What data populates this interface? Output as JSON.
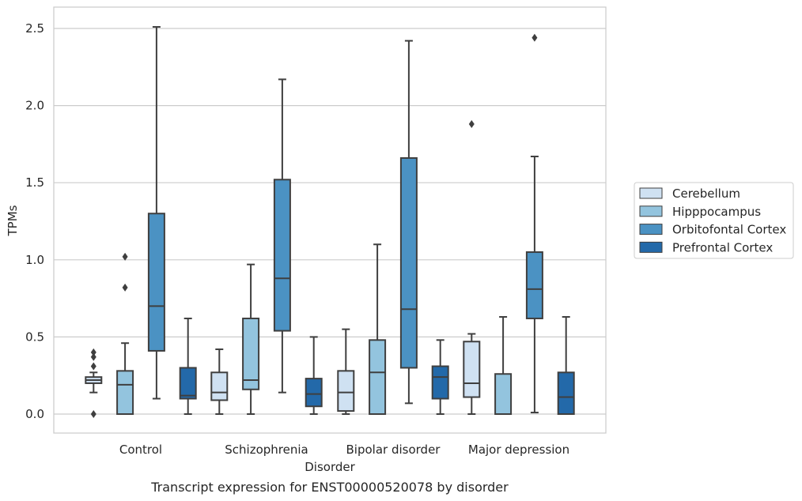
{
  "chart_data": {
    "type": "boxplot",
    "xlabel": "Disorder",
    "ylabel": "TPMs",
    "caption": "Transcript expression for ENST00000520078 by disorder",
    "ylim": [
      -0.12,
      2.65
    ],
    "yticks": [
      0.0,
      0.5,
      1.0,
      1.5,
      2.0,
      2.5
    ],
    "ytick_labels": [
      "0.0",
      "0.5",
      "1.0",
      "1.5",
      "2.0",
      "2.5"
    ],
    "grid": "horizontal",
    "legend_position": "right",
    "categories": [
      "Control",
      "Schizophrenia",
      "Bipolar disorder",
      "Major depression"
    ],
    "series": [
      {
        "name": "Cerebellum",
        "color": "#cfe1f2",
        "boxes": [
          {
            "whislo": 0.14,
            "q1": 0.2,
            "med": 0.22,
            "q3": 0.24,
            "whishi": 0.27,
            "fliers": [
              0.4,
              0.37,
              0.31,
              0.0
            ]
          },
          {
            "whislo": 0.0,
            "q1": 0.09,
            "med": 0.14,
            "q3": 0.27,
            "whishi": 0.42,
            "fliers": []
          },
          {
            "whislo": 0.0,
            "q1": 0.02,
            "med": 0.14,
            "q3": 0.28,
            "whishi": 0.55,
            "fliers": []
          },
          {
            "whislo": 0.0,
            "q1": 0.11,
            "med": 0.2,
            "q3": 0.47,
            "whishi": 0.52,
            "fliers": [
              1.88
            ]
          }
        ]
      },
      {
        "name": "Hipppocampus",
        "color": "#93c4de",
        "boxes": [
          {
            "whislo": 0.0,
            "q1": 0.0,
            "med": 0.19,
            "q3": 0.28,
            "whishi": 0.46,
            "fliers": [
              1.02,
              0.82
            ]
          },
          {
            "whislo": 0.0,
            "q1": 0.16,
            "med": 0.22,
            "q3": 0.62,
            "whishi": 0.97,
            "fliers": []
          },
          {
            "whislo": 0.0,
            "q1": 0.0,
            "med": 0.27,
            "q3": 0.48,
            "whishi": 1.1,
            "fliers": []
          },
          {
            "whislo": 0.0,
            "q1": 0.0,
            "med": 0.0,
            "q3": 0.26,
            "whishi": 0.63,
            "fliers": []
          }
        ]
      },
      {
        "name": "Orbitofontal Cortex",
        "color": "#4b92c3",
        "boxes": [
          {
            "whislo": 0.1,
            "q1": 0.41,
            "med": 0.7,
            "q3": 1.3,
            "whishi": 2.51,
            "fliers": []
          },
          {
            "whislo": 0.14,
            "q1": 0.54,
            "med": 0.88,
            "q3": 1.52,
            "whishi": 2.17,
            "fliers": []
          },
          {
            "whislo": 0.07,
            "q1": 0.3,
            "med": 0.68,
            "q3": 1.66,
            "whishi": 2.42,
            "fliers": []
          },
          {
            "whislo": 0.01,
            "q1": 0.62,
            "med": 0.81,
            "q3": 1.05,
            "whishi": 1.67,
            "fliers": [
              2.44
            ]
          }
        ]
      },
      {
        "name": "Prefrontal Cortex",
        "color": "#2369a9",
        "boxes": [
          {
            "whislo": 0.0,
            "q1": 0.1,
            "med": 0.12,
            "q3": 0.3,
            "whishi": 0.62,
            "fliers": []
          },
          {
            "whislo": 0.0,
            "q1": 0.05,
            "med": 0.13,
            "q3": 0.23,
            "whishi": 0.5,
            "fliers": []
          },
          {
            "whislo": 0.0,
            "q1": 0.1,
            "med": 0.24,
            "q3": 0.31,
            "whishi": 0.48,
            "fliers": []
          },
          {
            "whislo": 0.0,
            "q1": 0.0,
            "med": 0.11,
            "q3": 0.27,
            "whishi": 0.63,
            "fliers": []
          }
        ]
      }
    ]
  }
}
